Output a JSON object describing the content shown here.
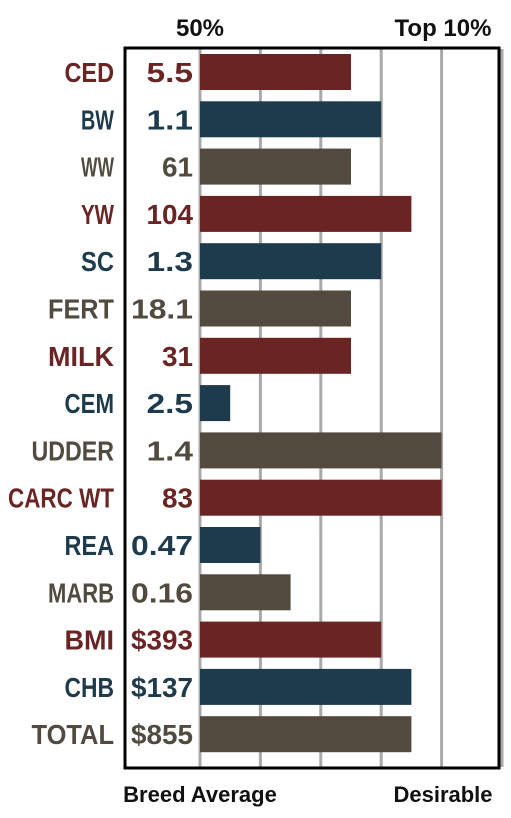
{
  "chart_data": {
    "type": "bar",
    "orientation": "horizontal",
    "top_labels": [
      "50%",
      "Top 10%"
    ],
    "bottom_labels": [
      "Breed Average",
      "Desirable"
    ],
    "categories": [
      "CED",
      "BW",
      "WW",
      "YW",
      "SC",
      "FERT",
      "MILK",
      "CEM",
      "UDDER",
      "CARC WT",
      "REA",
      "MARB",
      "BMI",
      "CHB",
      "TOTAL"
    ],
    "value_labels": [
      "5.5",
      "1.1",
      "61",
      "104",
      "1.3",
      "18.1",
      "31",
      "2.5",
      "1.4",
      "83",
      "0.47",
      "0.16",
      "$393",
      "$137",
      "$855"
    ],
    "bar_levels": [
      5,
      6,
      5,
      7,
      6,
      5,
      5,
      1,
      8,
      8,
      2,
      3,
      6,
      7,
      7
    ],
    "scale_max": 10,
    "grid": true,
    "row_colors": [
      "red",
      "blue",
      "brown",
      "red",
      "blue",
      "brown",
      "red",
      "blue",
      "brown",
      "red",
      "blue",
      "brown",
      "red",
      "blue",
      "brown"
    ],
    "colors": {
      "red": "#6b2424",
      "blue": "#1e3a4d",
      "brown": "#524a3f",
      "grid": "#a9a9a9",
      "frame": "#000000"
    }
  }
}
